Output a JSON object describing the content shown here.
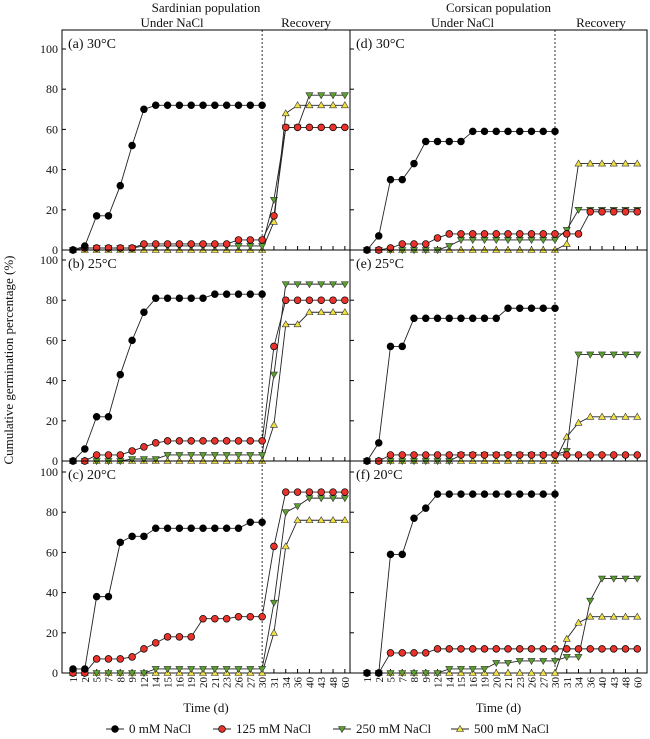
{
  "chart_data": {
    "type": "line",
    "ylabel": "Cumulative germination percentage (%)",
    "xlabel": "Time (d)",
    "ylim": [
      0,
      100
    ],
    "yticks": [
      "0",
      "20",
      "40",
      "60",
      "80",
      "100"
    ],
    "categories": [
      "1",
      "2",
      "5",
      "7",
      "8",
      "9",
      "12",
      "14",
      "15",
      "16",
      "19",
      "20",
      "21",
      "23",
      "26",
      "27",
      "30",
      "31",
      "34",
      "36",
      "40",
      "43",
      "48",
      "60"
    ],
    "columns": [
      {
        "title": "Sardinian population",
        "phase_labels": [
          "Under NaCl",
          "Recovery"
        ]
      },
      {
        "title": "Corsican population",
        "phase_labels": [
          "Under NaCl",
          "Recovery"
        ]
      }
    ],
    "legend": [
      {
        "name": "0 mM NaCl",
        "color": "#000000",
        "marker": "circle"
      },
      {
        "name": "125 mM NaCl",
        "color": "#e8322a",
        "marker": "circle"
      },
      {
        "name": "250 mM NaCl",
        "color": "#5aa02c",
        "marker": "triangle-down"
      },
      {
        "name": "500 mM NaCl",
        "color": "#f0e040",
        "marker": "triangle-up"
      }
    ],
    "panels": [
      {
        "label": "(a) 30°C",
        "column": 0,
        "row": 0,
        "series": [
          [
            0,
            2,
            17,
            17,
            32,
            52,
            70,
            72,
            72,
            72,
            72,
            72,
            72,
            72,
            72,
            72,
            72
          ],
          [
            0,
            1,
            1,
            1,
            1,
            1,
            3,
            3,
            3,
            3,
            3,
            3,
            3,
            3,
            5,
            5,
            5,
            17,
            61,
            61,
            61,
            61,
            61,
            61
          ],
          [
            0,
            1,
            1,
            1,
            1,
            1,
            2,
            2,
            2,
            2,
            2,
            2,
            2,
            2,
            2,
            2,
            2,
            25,
            61,
            61,
            77,
            77,
            77,
            77
          ],
          [
            0,
            0,
            0,
            0,
            0,
            0,
            0,
            0,
            0,
            0,
            0,
            0,
            0,
            0,
            0,
            0,
            0,
            14,
            68,
            72,
            72,
            72,
            72,
            72
          ]
        ]
      },
      {
        "label": "(b) 25°C",
        "column": 0,
        "row": 1,
        "series": [
          [
            0,
            6,
            22,
            22,
            43,
            60,
            74,
            81,
            81,
            81,
            81,
            81,
            83,
            83,
            83,
            83,
            83
          ],
          [
            0,
            0,
            3,
            3,
            3,
            5,
            7,
            9,
            10,
            10,
            10,
            10,
            10,
            10,
            10,
            10,
            10,
            57,
            80,
            80,
            80,
            80,
            80,
            80
          ],
          [
            0,
            0,
            0,
            0,
            0,
            1,
            1,
            1,
            3,
            3,
            3,
            3,
            3,
            3,
            3,
            3,
            3,
            43,
            88,
            88,
            88,
            88,
            88,
            88
          ],
          [
            0,
            0,
            0,
            0,
            0,
            0,
            0,
            0,
            0,
            0,
            0,
            0,
            0,
            0,
            0,
            0,
            0,
            18,
            68,
            68,
            74,
            74,
            74,
            74
          ]
        ]
      },
      {
        "label": "(c) 20°C",
        "column": 0,
        "row": 2,
        "series": [
          [
            2,
            2,
            38,
            38,
            65,
            68,
            68,
            72,
            72,
            72,
            72,
            72,
            72,
            72,
            72,
            75,
            75
          ],
          [
            0,
            0,
            7,
            7,
            7,
            8,
            12,
            15,
            18,
            18,
            18,
            27,
            27,
            27,
            28,
            28,
            28,
            63,
            90,
            90,
            90,
            90,
            90,
            90
          ],
          [
            0,
            0,
            0,
            0,
            0,
            0,
            0,
            2,
            2,
            2,
            2,
            2,
            2,
            2,
            2,
            2,
            2,
            35,
            80,
            83,
            87,
            87,
            87,
            87
          ],
          [
            0,
            0,
            0,
            0,
            0,
            0,
            0,
            0,
            0,
            0,
            0,
            0,
            0,
            0,
            0,
            0,
            0,
            20,
            63,
            76,
            76,
            76,
            76,
            76
          ]
        ]
      },
      {
        "label": "(d) 30°C",
        "column": 1,
        "row": 0,
        "series": [
          [
            0,
            7,
            35,
            35,
            43,
            54,
            54,
            54,
            54,
            59,
            59,
            59,
            59,
            59,
            59,
            59,
            59
          ],
          [
            0,
            0,
            1,
            3,
            3,
            3,
            6,
            8,
            8,
            8,
            8,
            8,
            8,
            8,
            8,
            8,
            8,
            8,
            8,
            19,
            19,
            19,
            19,
            19
          ],
          [
            0,
            0,
            0,
            0,
            0,
            0,
            0,
            2,
            5,
            5,
            5,
            5,
            5,
            5,
            5,
            5,
            5,
            10,
            20,
            20,
            20,
            20,
            20,
            20
          ],
          [
            0,
            0,
            0,
            0,
            0,
            0,
            0,
            0,
            0,
            0,
            0,
            0,
            0,
            0,
            0,
            0,
            0,
            3,
            43,
            43,
            43,
            43,
            43,
            43
          ]
        ]
      },
      {
        "label": "(e) 25°C",
        "column": 1,
        "row": 1,
        "series": [
          [
            0,
            9,
            57,
            57,
            71,
            71,
            71,
            71,
            71,
            71,
            71,
            71,
            76,
            76,
            76,
            76,
            76
          ],
          [
            0,
            0,
            3,
            3,
            3,
            3,
            3,
            3,
            3,
            3,
            3,
            3,
            3,
            3,
            3,
            3,
            3,
            3,
            3,
            3,
            3,
            3,
            3,
            3
          ],
          [
            0,
            0,
            0,
            0,
            0,
            0,
            0,
            0,
            3,
            3,
            3,
            3,
            3,
            3,
            3,
            3,
            3,
            5,
            53,
            53,
            53,
            53,
            53,
            53
          ],
          [
            0,
            0,
            0,
            0,
            0,
            0,
            0,
            0,
            0,
            0,
            0,
            0,
            0,
            0,
            0,
            0,
            0,
            12,
            19,
            22,
            22,
            22,
            22,
            22
          ]
        ]
      },
      {
        "label": "(f) 20°C",
        "column": 1,
        "row": 2,
        "series": [
          [
            0,
            0,
            59,
            59,
            77,
            82,
            89,
            89,
            89,
            89,
            89,
            89,
            89,
            89,
            89,
            89,
            89
          ],
          [
            0,
            0,
            10,
            10,
            10,
            10,
            12,
            12,
            12,
            12,
            12,
            12,
            12,
            12,
            12,
            12,
            12,
            12,
            12,
            12,
            12,
            12,
            12,
            12
          ],
          [
            0,
            0,
            0,
            0,
            0,
            0,
            0,
            2,
            2,
            2,
            2,
            5,
            5,
            6,
            6,
            6,
            6,
            8,
            8,
            36,
            47,
            47,
            47,
            47
          ],
          [
            0,
            0,
            0,
            0,
            0,
            0,
            0,
            0,
            0,
            0,
            0,
            0,
            0,
            0,
            0,
            0,
            0,
            17,
            25,
            28,
            28,
            28,
            28,
            28
          ]
        ]
      }
    ]
  }
}
